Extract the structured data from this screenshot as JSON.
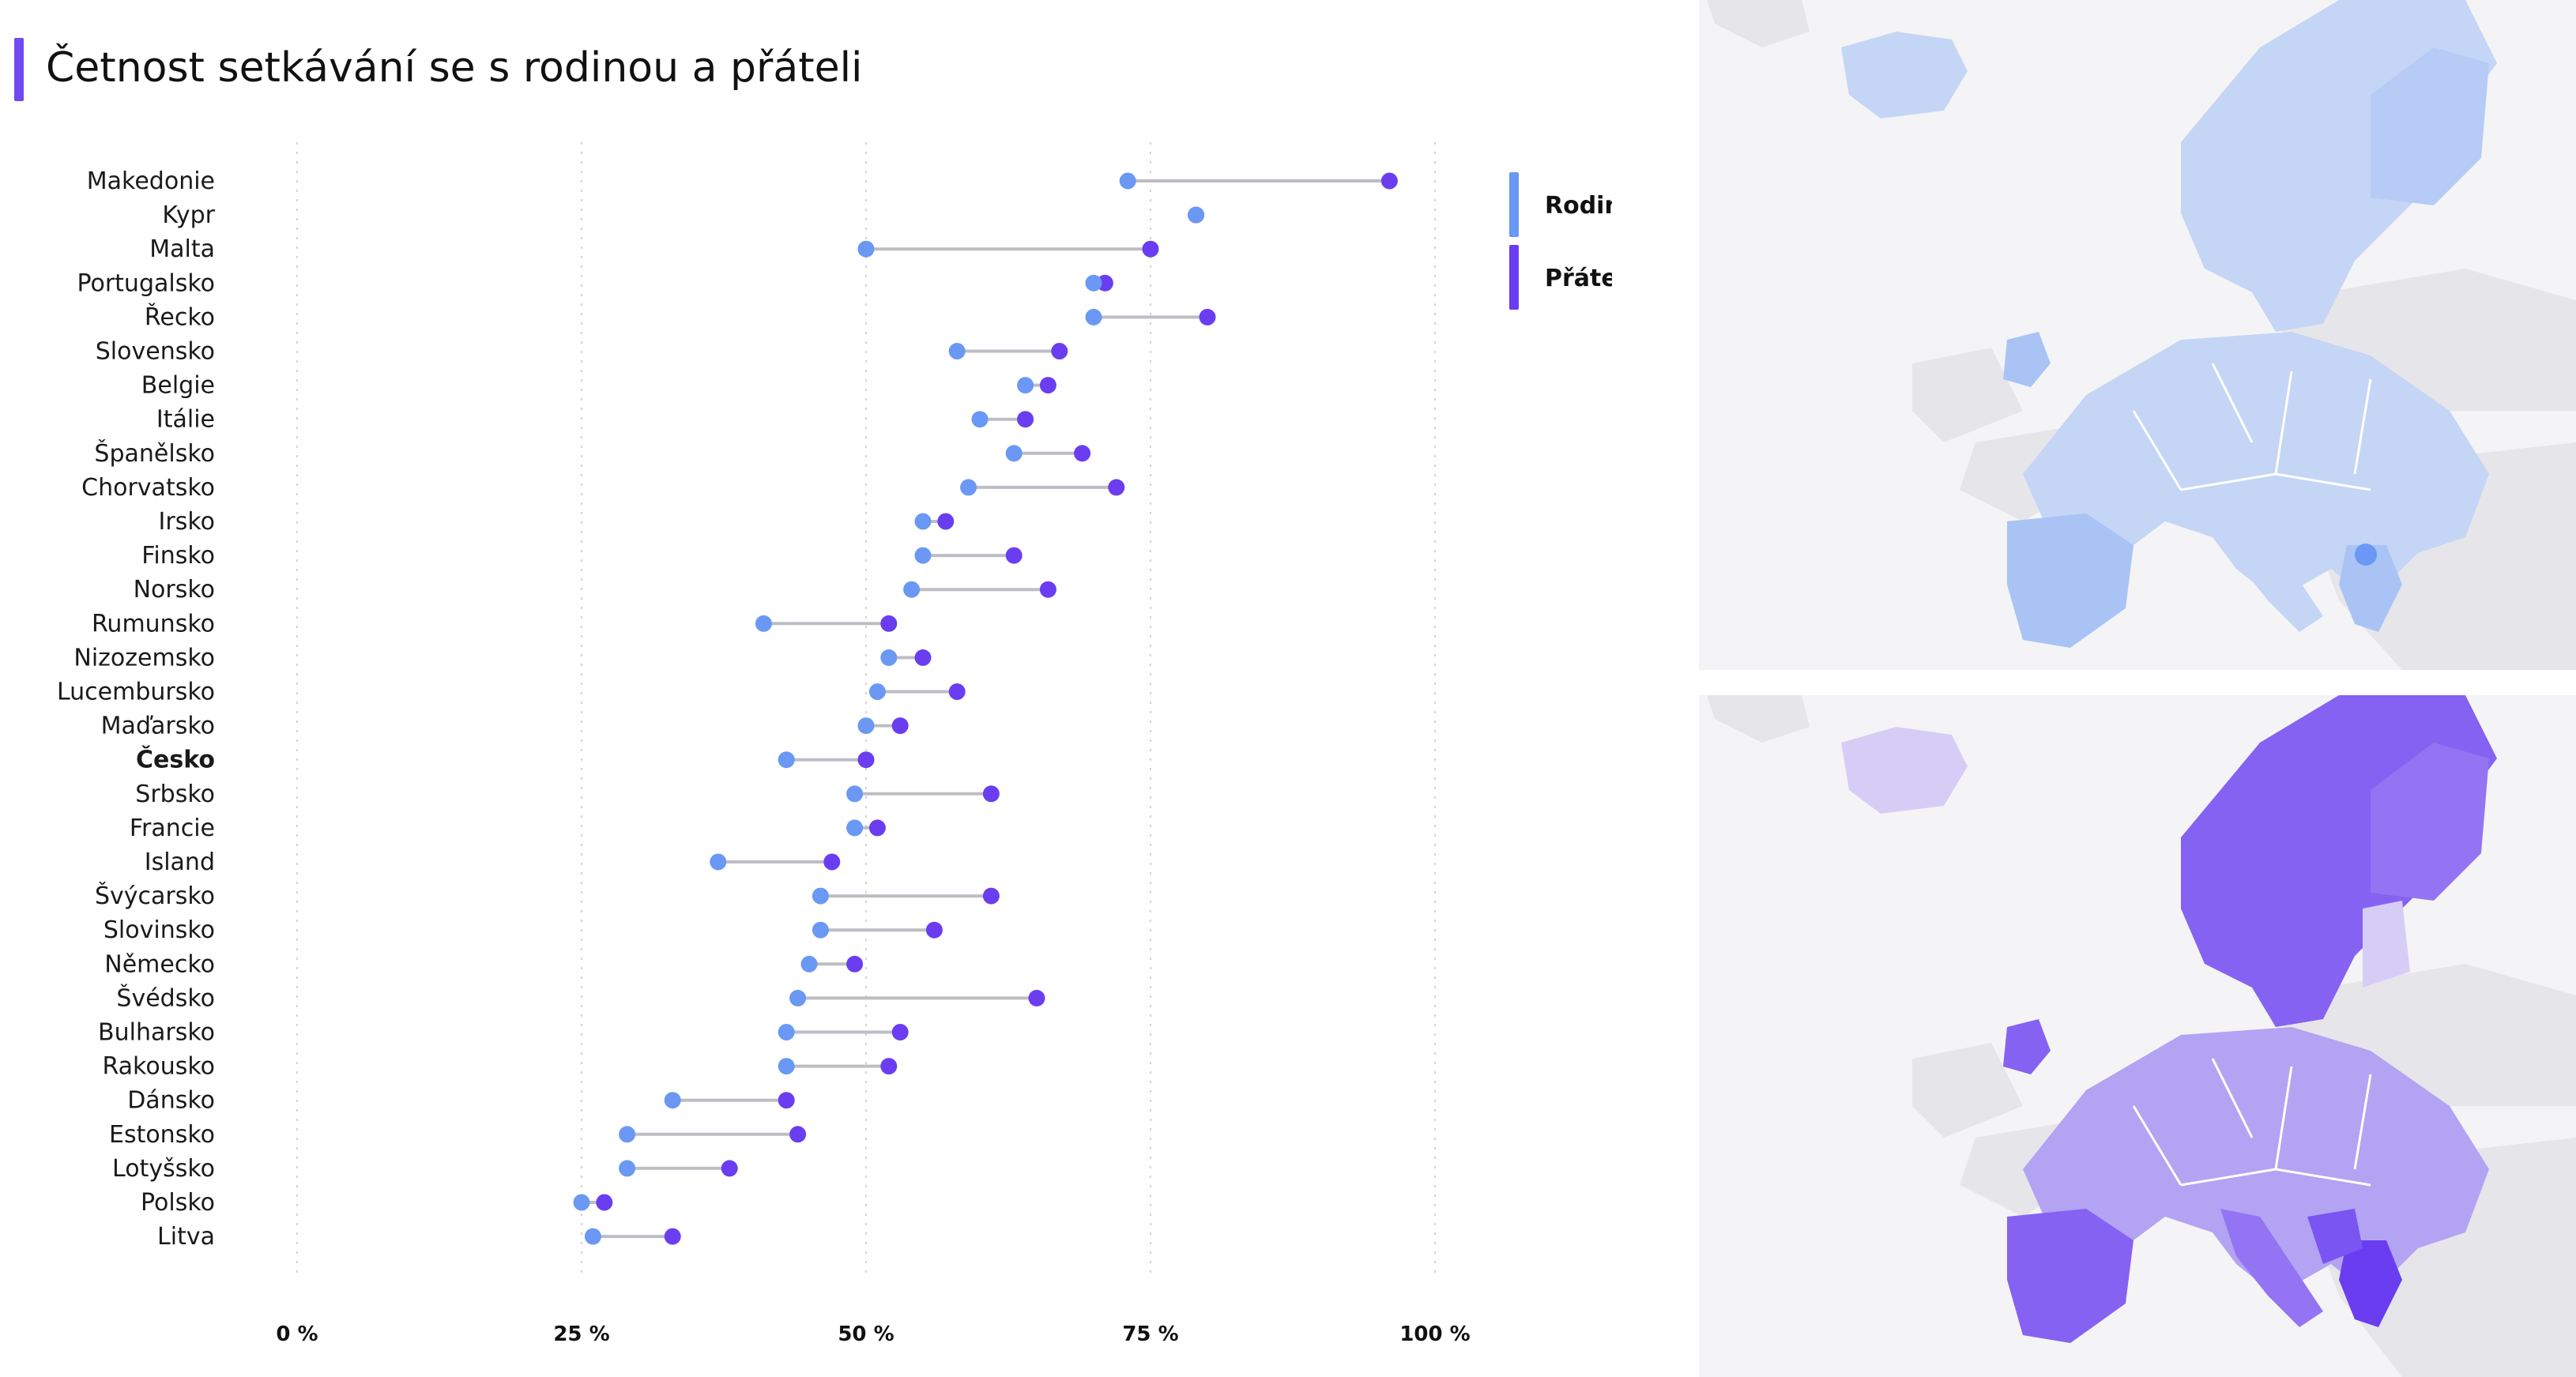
{
  "title": "Četnost setkávání se s rodinou a přáteli",
  "colors": {
    "rodina": "#6a98f4",
    "pratele": "#6a3ef0",
    "connector": "#bdbdc4",
    "grid": "#d4d4d4",
    "map_bg": "#f1f1f3",
    "map_land": "#e7e7ea"
  },
  "chart_data": {
    "type": "dumbbell",
    "title": "Četnost setkávání se s rodinou a přáteli",
    "xlim": [
      0,
      100
    ],
    "xticks": [
      "0 %",
      "25 %",
      "50 %",
      "75 %",
      "100 %"
    ],
    "xtick_values": [
      0,
      25,
      50,
      75,
      100
    ],
    "grid": true,
    "legend_position": "top-right",
    "highlight": "Česko",
    "series": [
      {
        "name": "Rodina",
        "color": "#6a98f4",
        "values": [
          73,
          79,
          50,
          70,
          70,
          58,
          64,
          60,
          63,
          59,
          55,
          55,
          54,
          41,
          52,
          51,
          50,
          43,
          49,
          49,
          37,
          46,
          46,
          45,
          44,
          43,
          43,
          33,
          29,
          29,
          25,
          26
        ]
      },
      {
        "name": "Přátelé",
        "color": "#6a3ef0",
        "values": [
          96,
          79,
          75,
          71,
          80,
          67,
          66,
          64,
          69,
          72,
          57,
          63,
          66,
          52,
          55,
          58,
          53,
          50,
          61,
          51,
          47,
          61,
          56,
          49,
          65,
          53,
          52,
          43,
          44,
          38,
          27,
          33
        ]
      }
    ],
    "categories": [
      "Makedonie",
      "Kypr",
      "Malta",
      "Portugalsko",
      "Řecko",
      "Slovensko",
      "Belgie",
      "Itálie",
      "Španělsko",
      "Chorvatsko",
      "Irsko",
      "Finsko",
      "Norsko",
      "Rumunsko",
      "Nizozemsko",
      "Lucembursko",
      "Maďarsko",
      "Česko",
      "Srbsko",
      "Francie",
      "Island",
      "Švýcarsko",
      "Slovinsko",
      "Německo",
      "Švédsko",
      "Bulharsko",
      "Rakousko",
      "Dánsko",
      "Estonsko",
      "Lotyšsko",
      "Polsko",
      "Litva"
    ]
  },
  "legend": [
    {
      "label": "Rodina",
      "color": "#6a98f4"
    },
    {
      "label": "Přátelé",
      "color": "#6a3ef0"
    }
  ],
  "maps": {
    "top": {
      "series": "Rodina",
      "land_fill": "#c5d5f5",
      "strong_fill": "#a9c3f5",
      "highlight_fill": "#6a98f4"
    },
    "bottom": {
      "series": "Přátelé",
      "land_fill": "#b3a3f3",
      "strong_fill": "#8562f2",
      "light_fill": "#d6cdf7"
    }
  }
}
